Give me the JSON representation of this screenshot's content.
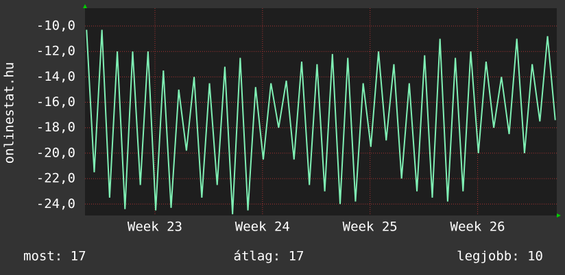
{
  "chart_data": {
    "type": "line",
    "y_label": "onlinestat.hu",
    "x": [
      0.1,
      0.6,
      1.1,
      1.6,
      2.1,
      2.6,
      3.1,
      3.6,
      4.1,
      4.6,
      5.1,
      5.6,
      6.1,
      6.6,
      7.1,
      7.6,
      8.1,
      8.6,
      9.1,
      9.6,
      10.1,
      10.6,
      11.1,
      11.6,
      12.1,
      12.6,
      13.1,
      13.6,
      14.1,
      14.6,
      15.1,
      15.6,
      16.1,
      16.6,
      17.1,
      17.6,
      18.1,
      18.6,
      19.1,
      19.6,
      20.1,
      20.6,
      21.1,
      21.6,
      22.1,
      22.6,
      23.1,
      23.6,
      24.1,
      24.6,
      25.1,
      25.6,
      26.1,
      26.6,
      27.1,
      27.6,
      28.1,
      28.6,
      29.1,
      29.6,
      30.1,
      30.6
    ],
    "series": [
      {
        "name": "onlinestat.hu",
        "color": "#7ff0b4",
        "values": [
          -10.3,
          -21.5,
          -10.3,
          -23.5,
          -12,
          -24.4,
          -12,
          -22.5,
          -12,
          -24.5,
          -13.5,
          -24.3,
          -15,
          -19.8,
          -14,
          -23.5,
          -14.5,
          -22.5,
          -13.2,
          -24.8,
          -12.5,
          -24.5,
          -14.8,
          -20.5,
          -14.5,
          -18,
          -14.3,
          -20.5,
          -12.8,
          -22.5,
          -13,
          -23,
          -12.2,
          -24,
          -12.5,
          -23.8,
          -14.5,
          -19.5,
          -12,
          -19,
          -13,
          -22,
          -14.5,
          -23,
          -12.3,
          -23.5,
          -11,
          -23.8,
          -12.5,
          -23,
          -12,
          -20,
          -12.8,
          -18,
          -14,
          -18.5,
          -11,
          -20,
          -13,
          -17.5,
          -10.8,
          -17.4
        ]
      }
    ],
    "xlim": [
      0,
      30.7
    ],
    "xticks": [
      {
        "value": 4.55,
        "label": "Week 23"
      },
      {
        "value": 11.55,
        "label": "Week 24"
      },
      {
        "value": 18.55,
        "label": "Week 25"
      },
      {
        "value": 25.55,
        "label": "Week 26"
      }
    ],
    "ylim": [
      -24.9,
      -8.6
    ],
    "yticks": [
      {
        "value": -24,
        "label": "-24,0"
      },
      {
        "value": -22,
        "label": "-22,0"
      },
      {
        "value": -20,
        "label": "-20,0"
      },
      {
        "value": -18,
        "label": "-18,0"
      },
      {
        "value": -16,
        "label": "-16,0"
      },
      {
        "value": -14,
        "label": "-14,0"
      },
      {
        "value": -12,
        "label": "-12,0"
      },
      {
        "value": -10,
        "label": "-10,0"
      }
    ],
    "grid": true,
    "footer": [
      "most: 17",
      "átlag: 17",
      "legjobb: 10"
    ]
  }
}
